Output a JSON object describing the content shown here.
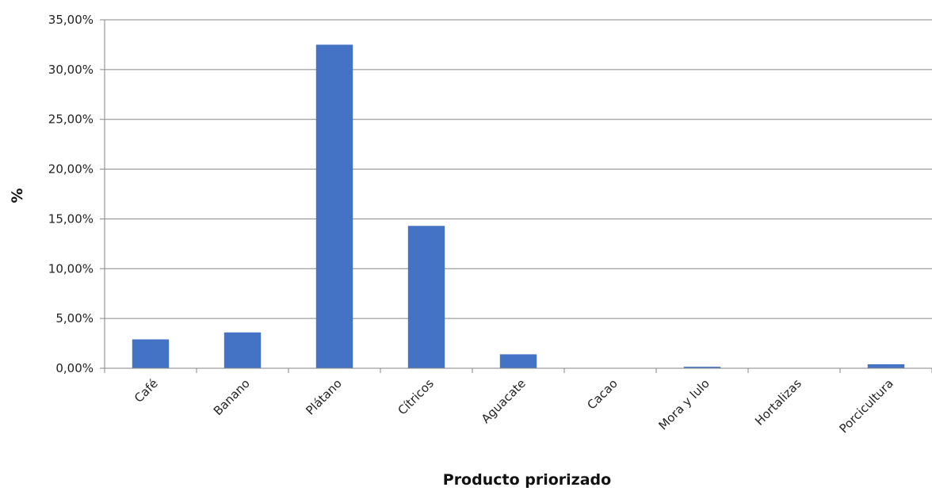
{
  "chart_data": {
    "type": "bar",
    "title": "",
    "xlabel": "Producto priorizado",
    "ylabel": "%",
    "categories": [
      "Café",
      "Banano",
      "Plátano",
      "Cítricos",
      "Aguacate",
      "Cacao",
      "Mora y lulo",
      "Hortalizas",
      "Porcicultura"
    ],
    "values": [
      2.9,
      3.6,
      32.5,
      14.3,
      1.4,
      0.0,
      0.15,
      0.0,
      0.4
    ],
    "ylim": [
      0,
      35
    ],
    "yticks": [
      0,
      5,
      10,
      15,
      20,
      25,
      30,
      35
    ],
    "ytick_labels": [
      "0,00%",
      "5,00%",
      "10,00%",
      "15,00%",
      "20,00%",
      "25,00%",
      "30,00%",
      "35,00%"
    ],
    "grid": true,
    "legend": "none",
    "colors": {
      "bar": "#4472C4",
      "grid": "#868686",
      "axis": "#868686"
    }
  }
}
